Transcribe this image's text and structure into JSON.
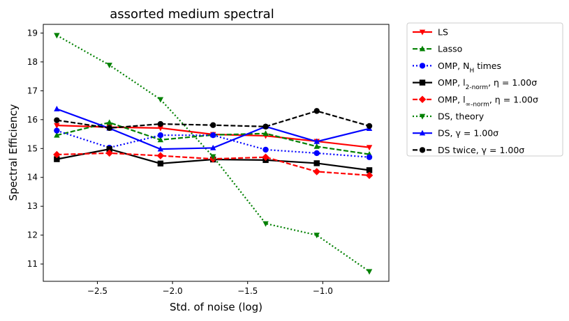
{
  "chart_data": {
    "type": "line",
    "title": "assorted medium spectral",
    "xlabel": "Std. of noise (log)",
    "ylabel": "Spectral Efficiency",
    "xlim": [
      -2.86,
      -0.56
    ],
    "ylim": [
      10.4,
      19.3
    ],
    "xticks": [
      -2.5,
      -2.0,
      -1.5,
      -1.0
    ],
    "xtick_labels": [
      "−2.5",
      "−2.0",
      "−1.5",
      "−1.0"
    ],
    "yticks": [
      11,
      12,
      13,
      14,
      15,
      16,
      17,
      18,
      19
    ],
    "ytick_labels": [
      "11",
      "12",
      "13",
      "14",
      "15",
      "16",
      "17",
      "18",
      "19"
    ],
    "legend_position": "outside-right-top",
    "grid": false,
    "x": [
      -2.77,
      -2.42,
      -2.08,
      -1.73,
      -1.38,
      -1.04,
      -0.69
    ],
    "series": [
      {
        "name": "LS",
        "color": "#ff0000",
        "dash": "solid",
        "marker": "triangle-down",
        "values": [
          15.8,
          15.74,
          15.71,
          15.49,
          15.44,
          15.25,
          15.04
        ]
      },
      {
        "name": "Lasso",
        "color": "#008000",
        "dash": "dashed",
        "marker": "triangle-up",
        "values": [
          15.46,
          15.9,
          15.3,
          15.47,
          15.52,
          15.07,
          14.8
        ]
      },
      {
        "name": "OMP, N_H times",
        "color": "#0000ff",
        "dash": "dotted",
        "marker": "circle",
        "values": [
          15.62,
          15.03,
          15.46,
          15.46,
          14.96,
          14.84,
          14.7
        ]
      },
      {
        "name": "OMP, l_2-norm, η = 1.00σ",
        "color": "#000000",
        "dash": "solid",
        "marker": "square",
        "values": [
          14.63,
          14.98,
          14.48,
          14.62,
          14.6,
          14.49,
          14.25
        ]
      },
      {
        "name": "OMP, l_∞-norm, η = 1.00σ",
        "color": "#ff0000",
        "dash": "dashed",
        "marker": "diamond",
        "values": [
          14.79,
          14.84,
          14.75,
          14.64,
          14.7,
          14.2,
          14.07
        ]
      },
      {
        "name": "DS, theory",
        "color": "#008000",
        "dash": "dotted",
        "marker": "triangle-down",
        "values": [
          18.92,
          17.89,
          16.7,
          14.72,
          12.4,
          12.0,
          10.74
        ]
      },
      {
        "name": "DS, γ = 1.00σ",
        "color": "#0000ff",
        "dash": "solid",
        "marker": "triangle-up",
        "values": [
          16.37,
          15.7,
          14.98,
          15.02,
          15.76,
          15.24,
          15.69
        ]
      },
      {
        "name": "DS twice, γ = 1.00σ",
        "color": "#000000",
        "dash": "dashed",
        "marker": "circle",
        "values": [
          15.98,
          15.71,
          15.85,
          15.81,
          15.76,
          16.3,
          15.78
        ]
      }
    ]
  }
}
